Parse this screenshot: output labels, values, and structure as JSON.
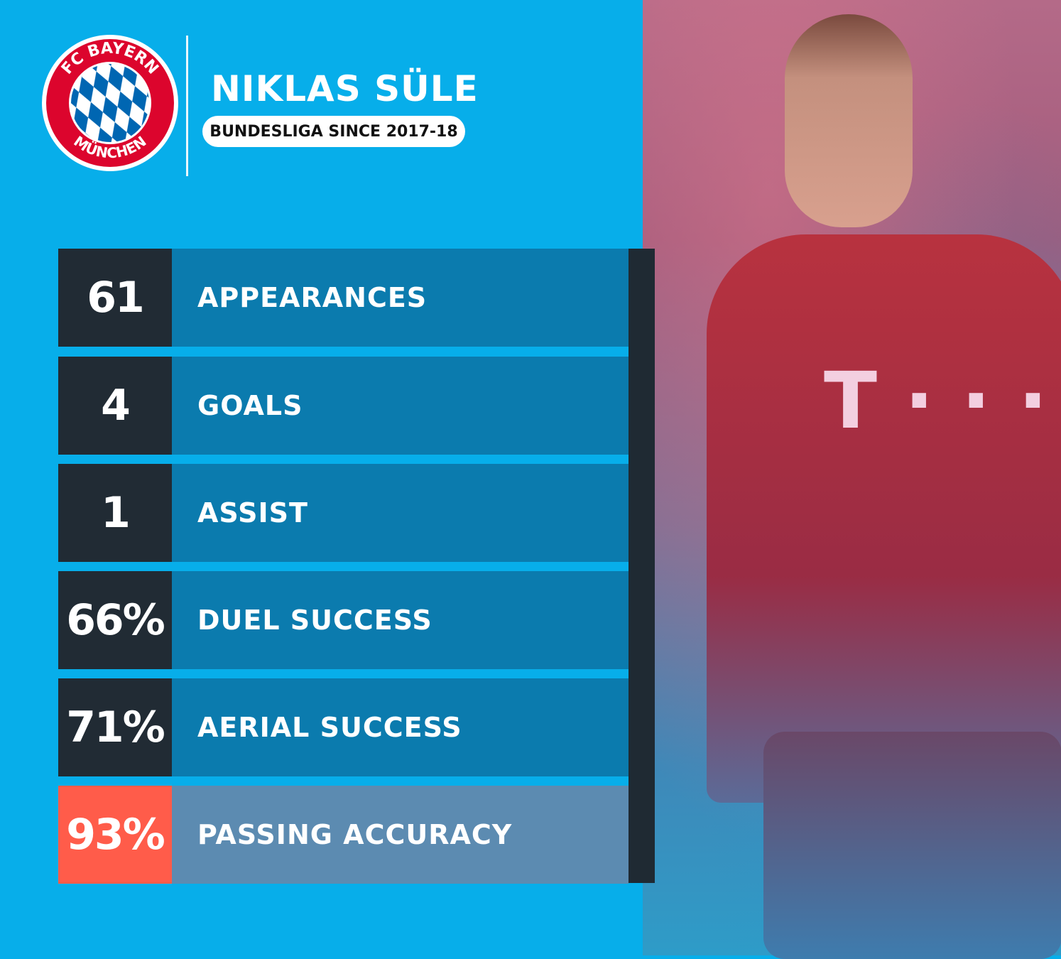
{
  "header": {
    "club_logo_text": "FC BAYERN MÜNCHEN",
    "player_name": "NIKLAS SÜLE",
    "subtitle": "BUNDESLIGA SINCE 2017-18"
  },
  "photo": {
    "jersey_sponsor": "T · · ·"
  },
  "stats": [
    {
      "value": "61",
      "label": "APPEARANCES"
    },
    {
      "value": "4",
      "label": "GOALS"
    },
    {
      "value": "1",
      "label": "ASSIST"
    },
    {
      "value": "66%",
      "label": "DUEL SUCCESS"
    },
    {
      "value": "71%",
      "label": "AERIAL SUCCESS"
    },
    {
      "value": "93%",
      "label": "PASSING ACCURACY",
      "highlight": true
    }
  ],
  "colors": {
    "background": "#07aeea",
    "number_box": "#212b34",
    "label_box": "#0b7bae",
    "highlight_number": "#ff5c4a",
    "highlight_label": "#5c8bb1",
    "logo_red": "#dc052d",
    "logo_blue": "#0066b2"
  }
}
